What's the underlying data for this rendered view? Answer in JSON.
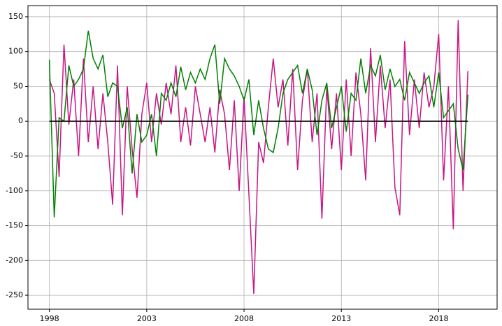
{
  "chart_data": {
    "type": "line",
    "x": [
      1998,
      1998.25,
      1998.5,
      1998.75,
      1999,
      1999.25,
      1999.5,
      1999.75,
      2000,
      2000.25,
      2000.5,
      2000.75,
      2001,
      2001.25,
      2001.5,
      2001.75,
      2002,
      2002.25,
      2002.5,
      2002.75,
      2003,
      2003.25,
      2003.5,
      2003.75,
      2004,
      2004.25,
      2004.5,
      2004.75,
      2005,
      2005.25,
      2005.5,
      2005.75,
      2006,
      2006.25,
      2006.5,
      2006.75,
      2007,
      2007.25,
      2007.5,
      2007.75,
      2008,
      2008.25,
      2008.5,
      2008.75,
      2009,
      2009.25,
      2009.5,
      2009.75,
      2010,
      2010.25,
      2010.5,
      2010.75,
      2011,
      2011.25,
      2011.5,
      2011.75,
      2012,
      2012.25,
      2012.5,
      2012.75,
      2013,
      2013.25,
      2013.5,
      2013.75,
      2014,
      2014.25,
      2014.5,
      2014.75,
      2015,
      2015.25,
      2015.5,
      2015.75,
      2016,
      2016.25,
      2016.5,
      2016.75,
      2017,
      2017.25,
      2017.5,
      2017.75,
      2018,
      2018.25,
      2018.5,
      2018.75,
      2019,
      2019.25,
      2019.5
    ],
    "series": [
      {
        "color": "#c71585",
        "values": [
          60,
          40,
          -80,
          110,
          -5,
          60,
          -50,
          90,
          -30,
          50,
          -40,
          40,
          -30,
          -120,
          80,
          -135,
          50,
          -40,
          -110,
          10,
          55,
          -30,
          40,
          -5,
          55,
          10,
          80,
          -30,
          20,
          -35,
          50,
          10,
          -30,
          20,
          -45,
          45,
          10,
          -70,
          30,
          -100,
          35,
          -105,
          -248,
          -30,
          -60,
          20,
          90,
          20,
          60,
          -35,
          75,
          -70,
          30,
          75,
          -30,
          40,
          -140,
          50,
          -40,
          40,
          -70,
          60,
          -50,
          70,
          10,
          -85,
          105,
          -30,
          80,
          -10,
          60,
          -95,
          -135,
          115,
          -20,
          60,
          -10,
          70,
          20,
          50,
          125,
          -85,
          50,
          -155,
          145,
          -100,
          72
        ]
      },
      {
        "color": "#008000",
        "values": [
          88,
          -138,
          5,
          0,
          80,
          50,
          60,
          75,
          130,
          90,
          75,
          95,
          35,
          55,
          50,
          -10,
          20,
          -75,
          10,
          -30,
          -20,
          10,
          -50,
          40,
          30,
          55,
          35,
          78,
          45,
          70,
          55,
          75,
          60,
          90,
          110,
          25,
          90,
          75,
          65,
          50,
          30,
          60,
          -20,
          30,
          -10,
          -40,
          -45,
          -10,
          40,
          60,
          70,
          80,
          40,
          75,
          45,
          -20,
          30,
          55,
          -10,
          20,
          50,
          -15,
          40,
          30,
          90,
          40,
          80,
          65,
          95,
          45,
          75,
          50,
          60,
          30,
          70,
          55,
          40,
          55,
          65,
          20,
          70,
          5,
          15,
          25,
          -40,
          -70,
          38
        ]
      }
    ],
    "hline": 0,
    "xlim": [
      1996.9,
      2021
    ],
    "xticks": [
      1998,
      2003,
      2008,
      2013,
      2018
    ],
    "ylim": [
      -270,
      166
    ],
    "yticks": [
      -250,
      -200,
      -150,
      -100,
      -50,
      0,
      50,
      100,
      150
    ],
    "grid": true
  }
}
